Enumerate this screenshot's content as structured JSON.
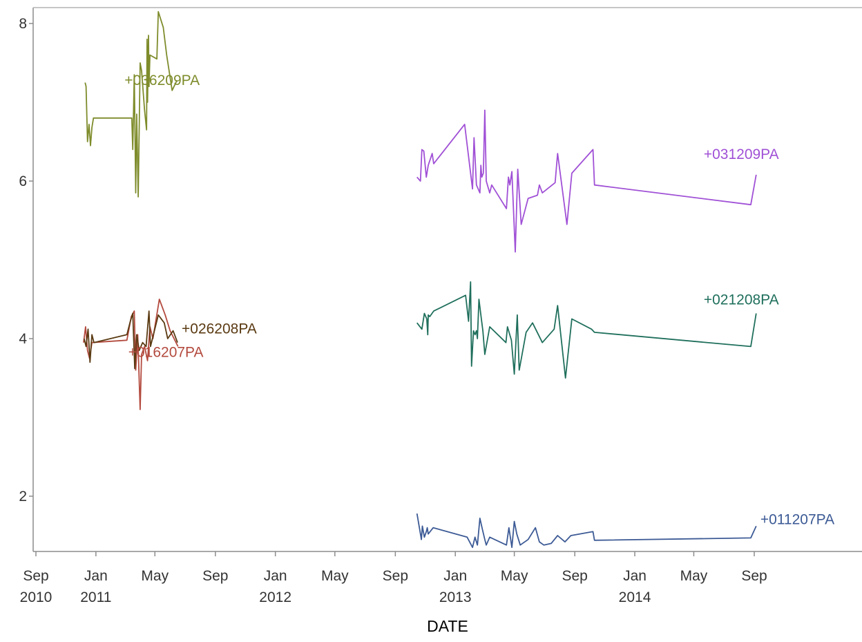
{
  "chart_data": {
    "type": "line",
    "xlabel": "DATE",
    "ylabel": "",
    "x_scale": "date",
    "xlim": [
      "2010-08-25",
      "2015-01-31"
    ],
    "ylim": [
      1.3,
      8.2
    ],
    "y_ticks": [
      2,
      4,
      6,
      8
    ],
    "x_ticks": [
      {
        "date": "2010-09-01",
        "month": "Sep",
        "year": "2010"
      },
      {
        "date": "2011-01-01",
        "month": "Jan",
        "year": "2011"
      },
      {
        "date": "2011-05-01",
        "month": "May",
        "year": ""
      },
      {
        "date": "2011-09-01",
        "month": "Sep",
        "year": ""
      },
      {
        "date": "2012-01-01",
        "month": "Jan",
        "year": "2012"
      },
      {
        "date": "2012-05-01",
        "month": "May",
        "year": ""
      },
      {
        "date": "2012-09-01",
        "month": "Sep",
        "year": ""
      },
      {
        "date": "2013-01-01",
        "month": "Jan",
        "year": "2013"
      },
      {
        "date": "2013-05-01",
        "month": "May",
        "year": ""
      },
      {
        "date": "2013-09-01",
        "month": "Sep",
        "year": ""
      },
      {
        "date": "2014-01-01",
        "month": "Jan",
        "year": "2014"
      },
      {
        "date": "2014-05-01",
        "month": "May",
        "year": ""
      },
      {
        "date": "2014-09-01",
        "month": "Sep",
        "year": ""
      }
    ],
    "grid": false,
    "legend": "none",
    "series": [
      {
        "name": "+036209PA",
        "color": "#7f8c2b",
        "points": [
          [
            "2010-12-10",
            7.25
          ],
          [
            "2010-12-12",
            7.2
          ],
          [
            "2010-12-15",
            6.5
          ],
          [
            "2010-12-18",
            6.72
          ],
          [
            "2010-12-21",
            6.45
          ],
          [
            "2010-12-24",
            6.68
          ],
          [
            "2010-12-27",
            6.8
          ],
          [
            "2011-03-15",
            6.8
          ],
          [
            "2011-03-17",
            6.4
          ],
          [
            "2011-03-20",
            7.35
          ],
          [
            "2011-03-23",
            5.85
          ],
          [
            "2011-03-25",
            6.85
          ],
          [
            "2011-03-28",
            5.8
          ],
          [
            "2011-04-01",
            7.5
          ],
          [
            "2011-04-04",
            7.4
          ],
          [
            "2011-04-10",
            6.9
          ],
          [
            "2011-04-14",
            6.65
          ],
          [
            "2011-04-15",
            7.8
          ],
          [
            "2011-04-16",
            7.0
          ],
          [
            "2011-04-18",
            7.85
          ],
          [
            "2011-04-19",
            7.2
          ],
          [
            "2011-04-21",
            7.6
          ],
          [
            "2011-05-05",
            7.55
          ],
          [
            "2011-05-08",
            8.15
          ],
          [
            "2011-05-18",
            7.95
          ],
          [
            "2011-05-25",
            7.6
          ],
          [
            "2011-06-05",
            7.15
          ],
          [
            "2011-06-15",
            7.28
          ]
        ]
      },
      {
        "name": "+016207PA",
        "color": "#b34a3e",
        "points": [
          [
            "2010-12-07",
            3.95
          ],
          [
            "2010-12-11",
            4.15
          ],
          [
            "2010-12-15",
            3.85
          ],
          [
            "2010-12-19",
            3.75
          ],
          [
            "2010-12-24",
            3.95
          ],
          [
            "2011-03-05",
            3.98
          ],
          [
            "2011-03-14",
            4.28
          ],
          [
            "2011-03-20",
            4.35
          ],
          [
            "2011-03-23",
            3.6
          ],
          [
            "2011-03-27",
            4.05
          ],
          [
            "2011-04-01",
            3.1
          ],
          [
            "2011-04-04",
            3.8
          ],
          [
            "2011-04-10",
            3.9
          ],
          [
            "2011-04-16",
            3.72
          ],
          [
            "2011-04-21",
            4.15
          ],
          [
            "2011-04-27",
            4.0
          ],
          [
            "2011-05-10",
            4.5
          ],
          [
            "2011-05-22",
            4.3
          ],
          [
            "2011-06-01",
            4.1
          ],
          [
            "2011-06-17",
            3.9
          ]
        ]
      },
      {
        "name": "+026208PA",
        "color": "#5a3a12",
        "points": [
          [
            "2010-12-08",
            4.0
          ],
          [
            "2010-12-12",
            3.9
          ],
          [
            "2010-12-16",
            4.12
          ],
          [
            "2010-12-20",
            3.7
          ],
          [
            "2010-12-24",
            4.05
          ],
          [
            "2010-12-28",
            3.95
          ],
          [
            "2011-03-05",
            4.05
          ],
          [
            "2011-03-12",
            4.22
          ],
          [
            "2011-03-17",
            4.32
          ],
          [
            "2011-03-21",
            3.62
          ],
          [
            "2011-03-25",
            4.05
          ],
          [
            "2011-03-30",
            3.85
          ],
          [
            "2011-04-06",
            3.95
          ],
          [
            "2011-04-13",
            3.9
          ],
          [
            "2011-04-19",
            4.35
          ],
          [
            "2011-04-22",
            3.9
          ],
          [
            "2011-05-08",
            4.3
          ],
          [
            "2011-05-20",
            4.2
          ],
          [
            "2011-05-27",
            4.0
          ],
          [
            "2011-06-07",
            4.1
          ],
          [
            "2011-06-16",
            3.95
          ]
        ]
      },
      {
        "name": "+031209PA",
        "color": "#a050d6",
        "points": [
          [
            "2012-10-15",
            6.05
          ],
          [
            "2012-10-22",
            6.0
          ],
          [
            "2012-10-25",
            6.4
          ],
          [
            "2012-10-29",
            6.38
          ],
          [
            "2012-11-03",
            6.05
          ],
          [
            "2012-11-07",
            6.2
          ],
          [
            "2012-11-15",
            6.35
          ],
          [
            "2012-11-18",
            6.22
          ],
          [
            "2013-01-20",
            6.72
          ],
          [
            "2013-02-05",
            5.9
          ],
          [
            "2013-02-08",
            6.55
          ],
          [
            "2013-02-13",
            5.95
          ],
          [
            "2013-02-20",
            5.85
          ],
          [
            "2013-02-22",
            6.2
          ],
          [
            "2013-02-24",
            6.05
          ],
          [
            "2013-02-27",
            6.1
          ],
          [
            "2013-03-02",
            6.9
          ],
          [
            "2013-03-05",
            6.0
          ],
          [
            "2013-03-12",
            5.85
          ],
          [
            "2013-03-16",
            5.95
          ],
          [
            "2013-04-15",
            5.65
          ],
          [
            "2013-04-19",
            6.05
          ],
          [
            "2013-04-22",
            5.95
          ],
          [
            "2013-04-26",
            6.12
          ],
          [
            "2013-05-03",
            5.1
          ],
          [
            "2013-05-08",
            6.15
          ],
          [
            "2013-05-15",
            5.45
          ],
          [
            "2013-05-29",
            5.78
          ],
          [
            "2013-06-17",
            5.82
          ],
          [
            "2013-06-21",
            5.95
          ],
          [
            "2013-06-27",
            5.85
          ],
          [
            "2013-07-23",
            5.98
          ],
          [
            "2013-07-28",
            6.35
          ],
          [
            "2013-08-16",
            5.45
          ],
          [
            "2013-08-26",
            6.1
          ],
          [
            "2013-10-08",
            6.4
          ],
          [
            "2013-10-11",
            5.95
          ],
          [
            "2014-08-25",
            5.7
          ],
          [
            "2014-09-05",
            6.08
          ]
        ]
      },
      {
        "name": "+021208PA",
        "color": "#1f6f5c",
        "points": [
          [
            "2012-10-15",
            4.2
          ],
          [
            "2012-10-25",
            4.12
          ],
          [
            "2012-10-30",
            4.32
          ],
          [
            "2012-11-04",
            4.25
          ],
          [
            "2012-11-06",
            4.05
          ],
          [
            "2012-11-07",
            4.3
          ],
          [
            "2012-11-10",
            4.28
          ],
          [
            "2012-11-18",
            4.35
          ],
          [
            "2013-01-22",
            4.55
          ],
          [
            "2013-01-28",
            4.22
          ],
          [
            "2013-02-01",
            4.72
          ],
          [
            "2013-02-03",
            3.65
          ],
          [
            "2013-02-07",
            4.1
          ],
          [
            "2013-02-10",
            4.05
          ],
          [
            "2013-02-13",
            4.1
          ],
          [
            "2013-02-15",
            4.0
          ],
          [
            "2013-02-18",
            4.5
          ],
          [
            "2013-02-23",
            4.25
          ],
          [
            "2013-02-26",
            4.1
          ],
          [
            "2013-03-02",
            3.8
          ],
          [
            "2013-03-12",
            4.15
          ],
          [
            "2013-04-14",
            3.95
          ],
          [
            "2013-04-17",
            4.15
          ],
          [
            "2013-04-25",
            3.98
          ],
          [
            "2013-05-01",
            3.55
          ],
          [
            "2013-05-07",
            4.3
          ],
          [
            "2013-05-11",
            3.6
          ],
          [
            "2013-05-25",
            4.08
          ],
          [
            "2013-06-07",
            4.2
          ],
          [
            "2013-06-27",
            3.95
          ],
          [
            "2013-07-21",
            4.12
          ],
          [
            "2013-07-28",
            4.42
          ],
          [
            "2013-08-13",
            3.5
          ],
          [
            "2013-08-26",
            4.25
          ],
          [
            "2013-10-05",
            4.12
          ],
          [
            "2013-10-11",
            4.08
          ],
          [
            "2014-08-25",
            3.9
          ],
          [
            "2014-09-05",
            4.32
          ]
        ]
      },
      {
        "name": "+011207PA",
        "color": "#3c5a95",
        "points": [
          [
            "2012-10-15",
            1.78
          ],
          [
            "2012-10-24",
            1.45
          ],
          [
            "2012-10-26",
            1.62
          ],
          [
            "2012-10-30",
            1.48
          ],
          [
            "2012-11-03",
            1.55
          ],
          [
            "2012-11-05",
            1.6
          ],
          [
            "2012-11-07",
            1.52
          ],
          [
            "2012-11-17",
            1.6
          ],
          [
            "2013-01-25",
            1.48
          ],
          [
            "2013-02-05",
            1.35
          ],
          [
            "2013-02-10",
            1.48
          ],
          [
            "2013-02-15",
            1.38
          ],
          [
            "2013-02-20",
            1.72
          ],
          [
            "2013-02-25",
            1.58
          ],
          [
            "2013-03-02",
            1.45
          ],
          [
            "2013-03-05",
            1.38
          ],
          [
            "2013-03-12",
            1.48
          ],
          [
            "2013-04-15",
            1.38
          ],
          [
            "2013-04-20",
            1.6
          ],
          [
            "2013-04-26",
            1.35
          ],
          [
            "2013-05-01",
            1.68
          ],
          [
            "2013-05-06",
            1.52
          ],
          [
            "2013-05-13",
            1.38
          ],
          [
            "2013-05-29",
            1.45
          ],
          [
            "2013-06-13",
            1.6
          ],
          [
            "2013-06-21",
            1.42
          ],
          [
            "2013-06-30",
            1.38
          ],
          [
            "2013-07-15",
            1.4
          ],
          [
            "2013-07-28",
            1.5
          ],
          [
            "2013-08-12",
            1.42
          ],
          [
            "2013-08-24",
            1.5
          ],
          [
            "2013-10-08",
            1.55
          ],
          [
            "2013-10-11",
            1.44
          ],
          [
            "2014-08-25",
            1.47
          ],
          [
            "2014-09-05",
            1.62
          ]
        ]
      }
    ]
  }
}
